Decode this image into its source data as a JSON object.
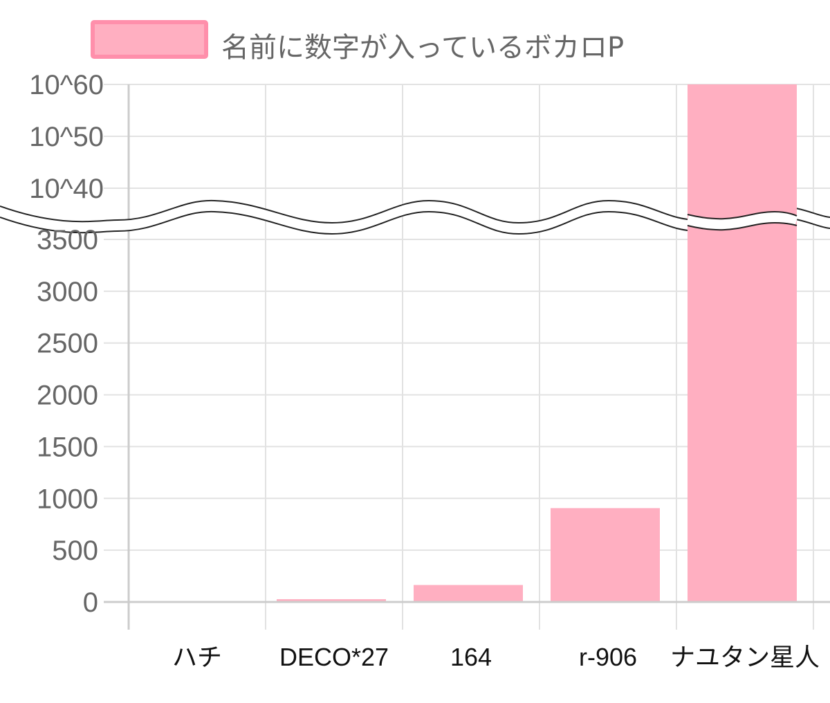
{
  "chart_data": {
    "type": "bar",
    "legend": {
      "label": "名前に数字が入っているボカロP",
      "position": "top",
      "color": "#ffafc1",
      "border_color": "#ff8fab"
    },
    "categories": [
      "ハチ",
      "DECO*27",
      "164",
      "r-906",
      "ナユタン星人"
    ],
    "series": [
      {
        "name": "名前に数字が入っているボカロP",
        "values": [
          8,
          27,
          164,
          906,
          1e+60
        ]
      }
    ],
    "y_ticks_linear": [
      "0",
      "500",
      "1000",
      "1500",
      "2000",
      "2500",
      "3000",
      "3500"
    ],
    "y_ticks_upper": [
      "10^40",
      "10^50",
      "10^60"
    ],
    "ylim_linear": [
      0,
      3500
    ],
    "ylim_upper_exponent": [
      40,
      60
    ],
    "axis_break": true,
    "grid": true,
    "bar_color": "#ffafc1"
  }
}
